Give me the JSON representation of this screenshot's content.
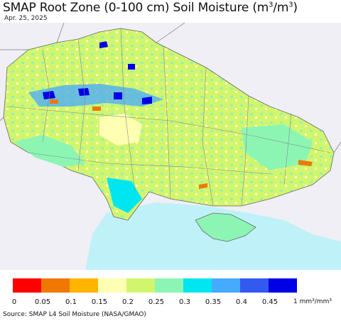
{
  "title": "SMAP Root Zone (0-100 cm) Soil Moisture (m",
  "title_sup1": "3",
  "title_mid": "/m",
  "title_sup2": "3",
  "title_end": ")",
  "date": "Apr. 25, 2025",
  "legend": {
    "colors": [
      "#ff0000",
      "#f07800",
      "#ffb400",
      "#ffffb4",
      "#d2f56e",
      "#8cf5b4",
      "#00e6f0",
      "#46aaff",
      "#325af0",
      "#0000e6"
    ],
    "ticks": [
      "0",
      "0.05",
      "0.1",
      "0.15",
      "0.2",
      "0.25",
      "0.3",
      "0.35",
      "0.4",
      "0.45"
    ],
    "unit": "1 mm³/mm³"
  },
  "source": "Source: SMAP L4 Soil Moisture (NASA/GMAO)",
  "map_colors": {
    "sea": "#bff1f8",
    "outside_land": "#efeff5",
    "dominant": "#d2f56e",
    "moist": "#8cf5b4",
    "dry": "#ffffb4",
    "wet": "#00e6f0",
    "very_wet": "#0000e6"
  }
}
